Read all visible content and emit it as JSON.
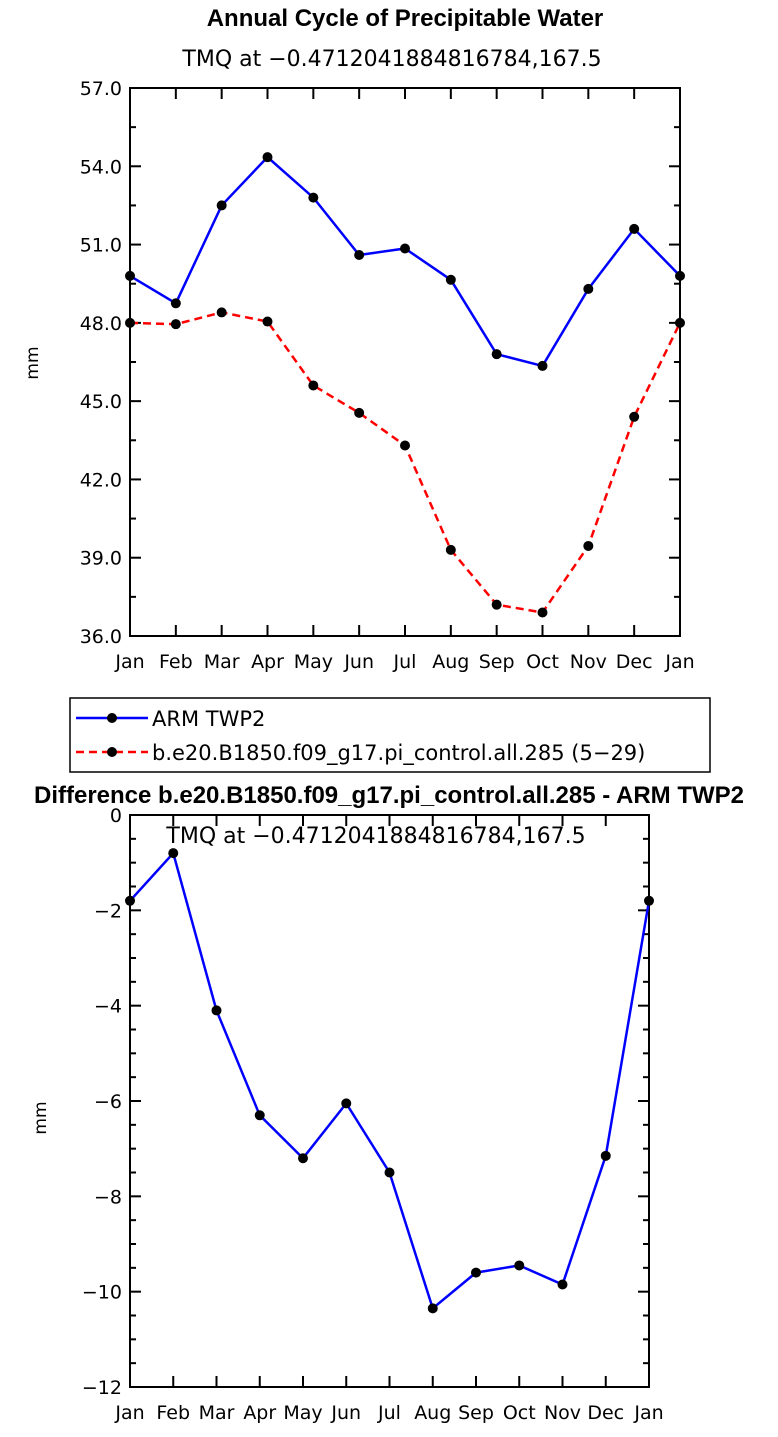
{
  "chart_data": [
    {
      "type": "line",
      "title": "Annual Cycle of Precipitable Water",
      "subtitle": "TMQ at −0.4712041884816784,167.5",
      "ylabel": "mm",
      "xlabel": "",
      "categories": [
        "Jan",
        "Feb",
        "Mar",
        "Apr",
        "May",
        "Jun",
        "Jul",
        "Aug",
        "Sep",
        "Oct",
        "Nov",
        "Dec",
        "Jan"
      ],
      "ylim": [
        36.0,
        57.0
      ],
      "yticks": [
        "36.0",
        "39.0",
        "42.0",
        "45.0",
        "48.0",
        "51.0",
        "54.0",
        "57.0"
      ],
      "grid": false,
      "legend": "below",
      "series": [
        {
          "name": "ARM TWP2",
          "color": "#0000ff",
          "dash": "solid",
          "values": [
            49.8,
            48.75,
            52.5,
            54.35,
            52.8,
            50.6,
            50.85,
            49.65,
            46.8,
            46.35,
            49.3,
            51.6,
            49.8
          ]
        },
        {
          "name": "b.e20.B1850.f09_g17.pi_control.all.285 (5−29)",
          "color": "#ff0000",
          "dash": "dashed",
          "values": [
            48.0,
            47.95,
            48.4,
            48.05,
            45.6,
            44.55,
            43.3,
            39.3,
            37.2,
            36.9,
            39.45,
            44.4,
            48.0
          ]
        }
      ]
    },
    {
      "type": "line",
      "title": "Difference b.e20.B1850.f09_g17.pi_control.all.285 - ARM TWP2",
      "subtitle": "TMQ at −0.4712041884816784,167.5",
      "ylabel": "mm",
      "xlabel": "",
      "categories": [
        "Jan",
        "Feb",
        "Mar",
        "Apr",
        "May",
        "Jun",
        "Jul",
        "Aug",
        "Sep",
        "Oct",
        "Nov",
        "Dec",
        "Jan"
      ],
      "ylim": [
        -12,
        0
      ],
      "yticks": [
        "−12",
        "−10",
        "−8",
        "−6",
        "−4",
        "−2",
        "0"
      ],
      "grid": false,
      "series": [
        {
          "color": "#0000ff",
          "dash": "solid",
          "values": [
            -1.8,
            -0.8,
            -4.1,
            -6.3,
            -7.2,
            -6.05,
            -7.5,
            -10.35,
            -9.6,
            -9.45,
            -9.85,
            -7.15,
            -1.8
          ]
        }
      ]
    }
  ]
}
